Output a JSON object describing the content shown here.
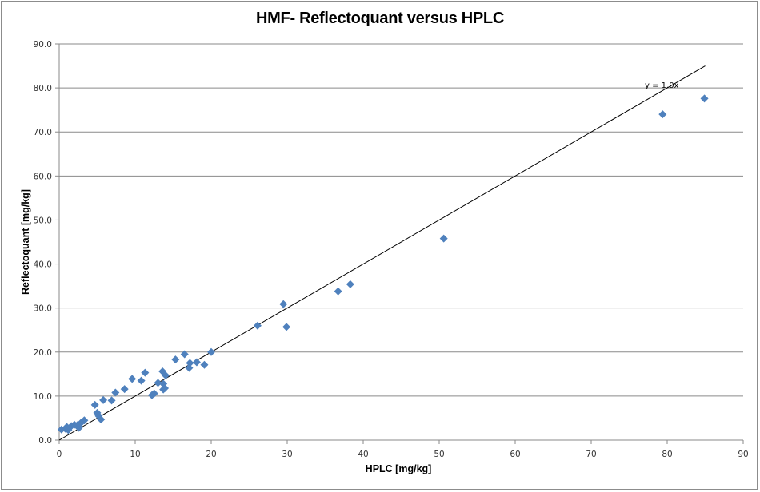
{
  "chart_data": {
    "type": "scatter",
    "title": "HMF- Reflectoquant versus HPLC",
    "xlabel": "HPLC [mg/kg]",
    "ylabel": "Reflectoquant [mg/kg]",
    "xlim": [
      0,
      90
    ],
    "ylim": [
      0,
      90
    ],
    "x_ticks": [
      "0",
      "10",
      "20",
      "30",
      "40",
      "50",
      "60",
      "70",
      "80",
      "90"
    ],
    "y_ticks": [
      "0.0",
      "10.0",
      "20.0",
      "30.0",
      "40.0",
      "50.0",
      "60.0",
      "70.0",
      "80.0",
      "90.0"
    ],
    "grid": {
      "horizontal": true,
      "vertical": false
    },
    "legend": null,
    "marker": {
      "shape": "diamond",
      "color": "#4f81bd"
    },
    "trendline": {
      "label": "y = 1.0x",
      "slope": 1.0,
      "intercept": 0,
      "x_range": [
        0,
        85
      ],
      "color": "#000000"
    },
    "series": [
      {
        "name": "HMF",
        "points": [
          [
            0.3,
            2.4
          ],
          [
            0.8,
            2.6
          ],
          [
            1.0,
            3.0
          ],
          [
            1.2,
            2.3
          ],
          [
            1.6,
            3.2
          ],
          [
            2.0,
            3.5
          ],
          [
            2.4,
            3.4
          ],
          [
            2.6,
            2.8
          ],
          [
            2.9,
            4.0
          ],
          [
            3.3,
            4.5
          ],
          [
            4.7,
            8.0
          ],
          [
            5.0,
            6.2
          ],
          [
            5.2,
            5.5
          ],
          [
            5.5,
            4.7
          ],
          [
            5.8,
            9.1
          ],
          [
            6.9,
            9.0
          ],
          [
            7.4,
            10.8
          ],
          [
            8.6,
            11.6
          ],
          [
            9.6,
            13.9
          ],
          [
            10.8,
            13.5
          ],
          [
            11.3,
            15.3
          ],
          [
            12.2,
            10.2
          ],
          [
            12.5,
            10.6
          ],
          [
            13.0,
            13.0
          ],
          [
            13.6,
            15.6
          ],
          [
            13.7,
            12.8
          ],
          [
            13.7,
            11.5
          ],
          [
            13.9,
            11.8
          ],
          [
            14.0,
            14.7
          ],
          [
            15.3,
            18.3
          ],
          [
            16.5,
            19.5
          ],
          [
            17.1,
            16.4
          ],
          [
            17.2,
            17.5
          ],
          [
            18.1,
            17.7
          ],
          [
            19.1,
            17.1
          ],
          [
            20.0,
            20.0
          ],
          [
            26.1,
            26.0
          ],
          [
            29.5,
            30.9
          ],
          [
            29.9,
            25.7
          ],
          [
            36.7,
            33.8
          ],
          [
            38.3,
            35.4
          ],
          [
            50.6,
            45.8
          ],
          [
            79.4,
            74.0
          ],
          [
            84.9,
            77.6
          ]
        ]
      }
    ]
  }
}
